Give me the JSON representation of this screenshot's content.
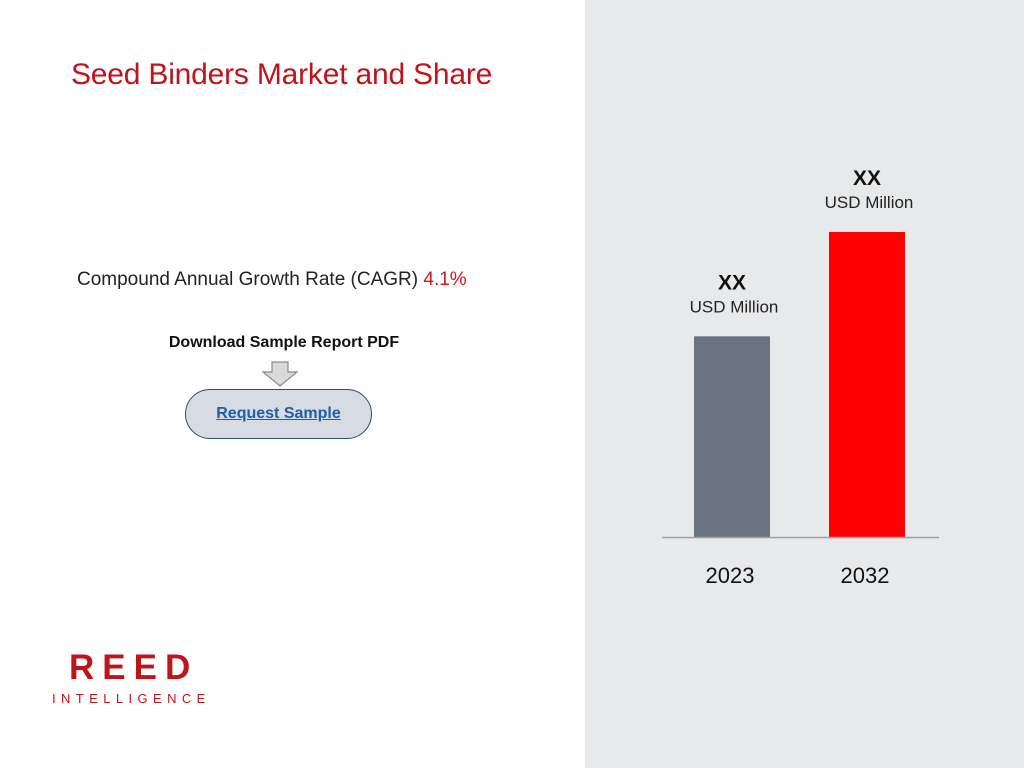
{
  "header": {
    "title": "Seed Binders Market and Share"
  },
  "cagr": {
    "label": "Compound Annual Growth Rate (CAGR)",
    "value": "4.1%"
  },
  "download": {
    "label": "Download Sample Report PDF",
    "button_label": "Request Sample"
  },
  "logo": {
    "top_text": "REED",
    "bottom_text": "INTELLIGENCE"
  },
  "colors": {
    "title": "#c0141b",
    "accent": "#d0151c",
    "bar_2023": "#6b7280",
    "bar_2032": "#ff0000",
    "panel_bg": "#e8e9eb"
  },
  "chart_data": {
    "type": "bar",
    "categories": [
      "2023",
      "2032"
    ],
    "values": [
      100,
      152
    ],
    "value_labels": [
      "XX",
      "XX"
    ],
    "unit_labels": [
      "USD Million",
      "USD Million"
    ],
    "colors": [
      "#6b7280",
      "#ff0000"
    ],
    "title": "",
    "xlabel": "",
    "ylabel": "",
    "ylim": [
      0,
      152
    ],
    "grid": false
  }
}
